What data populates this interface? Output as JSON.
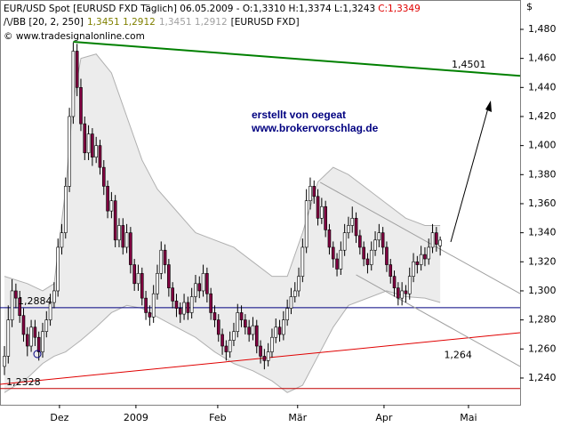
{
  "chart_data": {
    "type": "candlestick",
    "header": {
      "instrument": "EUR/USD Spot [EURUSD FXD  Täglich] 06.05.2009 - O:1,3310 H:1,3374 L:1,3243",
      "close": "C:1,3349",
      "indicator": "BB [20, 2, 250]",
      "indicator_values_1": "1,3451 1,2912",
      "indicator_values_2": "1,3451 1,2912",
      "indicator_source": "[EURUSD FXD]",
      "copyright": "www.tradesignalonline.com"
    },
    "currency": "$",
    "annotations": [
      "erstellt von oegeat",
      "www.brokervorschlag.de"
    ],
    "up_color": "#ffffff",
    "down_color": "#800040",
    "ylim": [
      1.2216,
      1.5002
    ],
    "xlim": [
      -1.16,
      134.9
    ],
    "yticks": [
      {
        "value": 1.24,
        "label": "1,240"
      },
      {
        "value": 1.26,
        "label": "1,260"
      },
      {
        "value": 1.28,
        "label": "1,280"
      },
      {
        "value": 1.3,
        "label": "1,300"
      },
      {
        "value": 1.32,
        "label": "1,320"
      },
      {
        "value": 1.34,
        "label": "1,340"
      },
      {
        "value": 1.36,
        "label": "1,360"
      },
      {
        "value": 1.38,
        "label": "1,380"
      },
      {
        "value": 1.4,
        "label": "1,400"
      },
      {
        "value": 1.42,
        "label": "1,420"
      },
      {
        "value": 1.44,
        "label": "1,440"
      },
      {
        "value": 1.46,
        "label": "1,460"
      },
      {
        "value": 1.48,
        "label": "1,480"
      }
    ],
    "xticks": [
      {
        "value": 14.4,
        "label": "Dez"
      },
      {
        "value": 34.4,
        "label": "2009"
      },
      {
        "value": 55.8,
        "label": "Feb"
      },
      {
        "value": 76.7,
        "label": "Mär"
      },
      {
        "value": 99.3,
        "label": "Apr"
      },
      {
        "value": 121.4,
        "label": "Mai"
      }
    ],
    "ohlc": [
      [
        1.248,
        1.262,
        1.242,
        1.255
      ],
      [
        1.255,
        1.29,
        1.25,
        1.28
      ],
      [
        1.28,
        1.308,
        1.275,
        1.3
      ],
      [
        1.3,
        1.305,
        1.288,
        1.295
      ],
      [
        1.295,
        1.3,
        1.278,
        1.283
      ],
      [
        1.283,
        1.288,
        1.265,
        1.27
      ],
      [
        1.27,
        1.275,
        1.255,
        1.262
      ],
      [
        1.262,
        1.28,
        1.258,
        1.275
      ],
      [
        1.275,
        1.28,
        1.262,
        1.268
      ],
      [
        1.268,
        1.272,
        1.252,
        1.258
      ],
      [
        1.258,
        1.278,
        1.254,
        1.272
      ],
      [
        1.272,
        1.286,
        1.268,
        1.28
      ],
      [
        1.28,
        1.298,
        1.276,
        1.292
      ],
      [
        1.292,
        1.306,
        1.288,
        1.3
      ],
      [
        1.3,
        1.336,
        1.296,
        1.33
      ],
      [
        1.33,
        1.346,
        1.325,
        1.34
      ],
      [
        1.34,
        1.378,
        1.336,
        1.372
      ],
      [
        1.372,
        1.426,
        1.368,
        1.42
      ],
      [
        1.42,
        1.471,
        1.415,
        1.465
      ],
      [
        1.465,
        1.47,
        1.434,
        1.44
      ],
      [
        1.44,
        1.446,
        1.41,
        1.415
      ],
      [
        1.415,
        1.42,
        1.39,
        1.395
      ],
      [
        1.395,
        1.414,
        1.39,
        1.408
      ],
      [
        1.408,
        1.412,
        1.386,
        1.392
      ],
      [
        1.392,
        1.406,
        1.388,
        1.4
      ],
      [
        1.4,
        1.404,
        1.38,
        1.385
      ],
      [
        1.385,
        1.39,
        1.366,
        1.372
      ],
      [
        1.372,
        1.376,
        1.35,
        1.355
      ],
      [
        1.355,
        1.368,
        1.35,
        1.362
      ],
      [
        1.362,
        1.366,
        1.33,
        1.335
      ],
      [
        1.335,
        1.35,
        1.33,
        1.345
      ],
      [
        1.345,
        1.35,
        1.325,
        1.33
      ],
      [
        1.33,
        1.346,
        1.326,
        1.34
      ],
      [
        1.34,
        1.344,
        1.312,
        1.318
      ],
      [
        1.318,
        1.322,
        1.3,
        1.305
      ],
      [
        1.305,
        1.318,
        1.3,
        1.312
      ],
      [
        1.312,
        1.316,
        1.29,
        1.295
      ],
      [
        1.295,
        1.3,
        1.28,
        1.285
      ],
      [
        1.285,
        1.29,
        1.276,
        1.282
      ],
      [
        1.282,
        1.304,
        1.278,
        1.298
      ],
      [
        1.298,
        1.318,
        1.294,
        1.312
      ],
      [
        1.312,
        1.334,
        1.308,
        1.328
      ],
      [
        1.328,
        1.332,
        1.312,
        1.318
      ],
      [
        1.318,
        1.322,
        1.296,
        1.302
      ],
      [
        1.302,
        1.306,
        1.288,
        1.293
      ],
      [
        1.293,
        1.298,
        1.282,
        1.288
      ],
      [
        1.288,
        1.292,
        1.278,
        1.284
      ],
      [
        1.284,
        1.298,
        1.28,
        1.292
      ],
      [
        1.292,
        1.296,
        1.28,
        1.285
      ],
      [
        1.285,
        1.302,
        1.281,
        1.296
      ],
      [
        1.296,
        1.311,
        1.292,
        1.305
      ],
      [
        1.305,
        1.31,
        1.295,
        1.3
      ],
      [
        1.3,
        1.318,
        1.296,
        1.312
      ],
      [
        1.312,
        1.316,
        1.292,
        1.298
      ],
      [
        1.298,
        1.302,
        1.28,
        1.285
      ],
      [
        1.285,
        1.29,
        1.275,
        1.28
      ],
      [
        1.28,
        1.284,
        1.265,
        1.27
      ],
      [
        1.27,
        1.274,
        1.256,
        1.262
      ],
      [
        1.262,
        1.266,
        1.252,
        1.258
      ],
      [
        1.258,
        1.272,
        1.254,
        1.266
      ],
      [
        1.266,
        1.278,
        1.262,
        1.272
      ],
      [
        1.272,
        1.291,
        1.268,
        1.285
      ],
      [
        1.285,
        1.29,
        1.275,
        1.28
      ],
      [
        1.28,
        1.284,
        1.27,
        1.275
      ],
      [
        1.275,
        1.28,
        1.265,
        1.27
      ],
      [
        1.27,
        1.282,
        1.266,
        1.276
      ],
      [
        1.276,
        1.28,
        1.257,
        1.262
      ],
      [
        1.262,
        1.266,
        1.25,
        1.255
      ],
      [
        1.255,
        1.26,
        1.246,
        1.252
      ],
      [
        1.252,
        1.264,
        1.248,
        1.258
      ],
      [
        1.258,
        1.274,
        1.254,
        1.268
      ],
      [
        1.268,
        1.281,
        1.264,
        1.275
      ],
      [
        1.275,
        1.28,
        1.265,
        1.27
      ],
      [
        1.27,
        1.286,
        1.266,
        1.28
      ],
      [
        1.28,
        1.294,
        1.276,
        1.288
      ],
      [
        1.288,
        1.302,
        1.284,
        1.296
      ],
      [
        1.296,
        1.306,
        1.292,
        1.3
      ],
      [
        1.3,
        1.316,
        1.296,
        1.31
      ],
      [
        1.31,
        1.336,
        1.306,
        1.33
      ],
      [
        1.33,
        1.37,
        1.326,
        1.362
      ],
      [
        1.362,
        1.378,
        1.356,
        1.372
      ],
      [
        1.372,
        1.376,
        1.36,
        1.365
      ],
      [
        1.365,
        1.37,
        1.345,
        1.35
      ],
      [
        1.35,
        1.364,
        1.346,
        1.358
      ],
      [
        1.358,
        1.362,
        1.337,
        1.342
      ],
      [
        1.342,
        1.346,
        1.325,
        1.33
      ],
      [
        1.33,
        1.334,
        1.316,
        1.322
      ],
      [
        1.322,
        1.326,
        1.31,
        1.315
      ],
      [
        1.315,
        1.334,
        1.311,
        1.328
      ],
      [
        1.328,
        1.346,
        1.324,
        1.34
      ],
      [
        1.34,
        1.351,
        1.336,
        1.345
      ],
      [
        1.345,
        1.358,
        1.34,
        1.35
      ],
      [
        1.35,
        1.354,
        1.333,
        1.338
      ],
      [
        1.338,
        1.342,
        1.325,
        1.33
      ],
      [
        1.33,
        1.334,
        1.317,
        1.322
      ],
      [
        1.322,
        1.326,
        1.312,
        1.318
      ],
      [
        1.318,
        1.334,
        1.314,
        1.328
      ],
      [
        1.328,
        1.341,
        1.324,
        1.335
      ],
      [
        1.335,
        1.346,
        1.33,
        1.34
      ],
      [
        1.34,
        1.344,
        1.325,
        1.33
      ],
      [
        1.33,
        1.334,
        1.313,
        1.318
      ],
      [
        1.318,
        1.322,
        1.305,
        1.31
      ],
      [
        1.31,
        1.314,
        1.296,
        1.302
      ],
      [
        1.302,
        1.306,
        1.29,
        1.295
      ],
      [
        1.295,
        1.306,
        1.29,
        1.3
      ],
      [
        1.3,
        1.304,
        1.292,
        1.298
      ],
      [
        1.298,
        1.316,
        1.294,
        1.31
      ],
      [
        1.31,
        1.326,
        1.306,
        1.32
      ],
      [
        1.32,
        1.324,
        1.312,
        1.318
      ],
      [
        1.318,
        1.331,
        1.314,
        1.325
      ],
      [
        1.325,
        1.33,
        1.317,
        1.322
      ],
      [
        1.322,
        1.336,
        1.318,
        1.33
      ],
      [
        1.33,
        1.346,
        1.326,
        1.34
      ],
      [
        1.34,
        1.344,
        1.327,
        1.332
      ],
      [
        1.331,
        1.3374,
        1.3243,
        1.3349
      ]
    ],
    "bands": [
      {
        "name": "upper",
        "color": "#b0b0b0",
        "x": [
          0,
          6,
          10,
          13,
          16,
          18,
          20,
          24,
          28,
          32,
          36,
          40,
          45,
          50,
          55,
          60,
          65,
          70,
          74,
          78,
          82,
          86,
          90,
          95,
          100,
          105,
          110,
          114
        ],
        "values": [
          1.31,
          1.305,
          1.3,
          1.305,
          1.37,
          1.43,
          1.46,
          1.463,
          1.45,
          1.42,
          1.39,
          1.37,
          1.355,
          1.34,
          1.335,
          1.33,
          1.32,
          1.31,
          1.31,
          1.34,
          1.375,
          1.385,
          1.38,
          1.37,
          1.36,
          1.35,
          1.345,
          1.345
        ]
      },
      {
        "name": "lower",
        "color": "#b0b0b0",
        "x": [
          0,
          6,
          10,
          13,
          16,
          18,
          20,
          24,
          28,
          32,
          36,
          40,
          45,
          50,
          55,
          60,
          65,
          70,
          74,
          78,
          82,
          86,
          90,
          95,
          100,
          105,
          110,
          114
        ],
        "values": [
          1.23,
          1.24,
          1.25,
          1.255,
          1.258,
          1.262,
          1.266,
          1.275,
          1.285,
          1.29,
          1.288,
          1.282,
          1.275,
          1.268,
          1.258,
          1.25,
          1.245,
          1.238,
          1.23,
          1.235,
          1.255,
          1.275,
          1.29,
          1.295,
          1.3,
          1.296,
          1.295,
          1.292
        ]
      }
    ],
    "lines": [
      {
        "color": "#008000",
        "width": 2,
        "x": [
          18,
          134.9
        ],
        "values": [
          1.4714,
          1.448
        ],
        "label": "1,4501",
        "label_x": 117,
        "label_value": 1.4555
      },
      {
        "color": "#e00000",
        "width": 1,
        "x": [
          -1.16,
          134.9
        ],
        "values": [
          1.2357,
          1.2712
        ],
        "label": "1,264",
        "label_x": 115,
        "label_value": 1.2555
      },
      {
        "color": "#c00000",
        "width": 1,
        "x": [
          -1.16,
          134.9
        ],
        "values": [
          1.2328,
          1.2328
        ],
        "label": "1,2328",
        "label_x": 0.5,
        "label_value": 1.2368
      },
      {
        "color": "#000080",
        "width": 1,
        "x": [
          -1.16,
          134.9
        ],
        "values": [
          1.2884,
          1.2884
        ],
        "label": "1,2884",
        "label_x": 3.5,
        "label_value": 1.2925
      },
      {
        "color": "#a0a0a0",
        "width": 1,
        "x": [
          82.6,
          134.9
        ],
        "values": [
          1.3747,
          1.2981
        ]
      },
      {
        "color": "#a0a0a0",
        "width": 1,
        "x": [
          92,
          134.9
        ],
        "values": [
          1.311,
          1.248
        ]
      }
    ]
  }
}
